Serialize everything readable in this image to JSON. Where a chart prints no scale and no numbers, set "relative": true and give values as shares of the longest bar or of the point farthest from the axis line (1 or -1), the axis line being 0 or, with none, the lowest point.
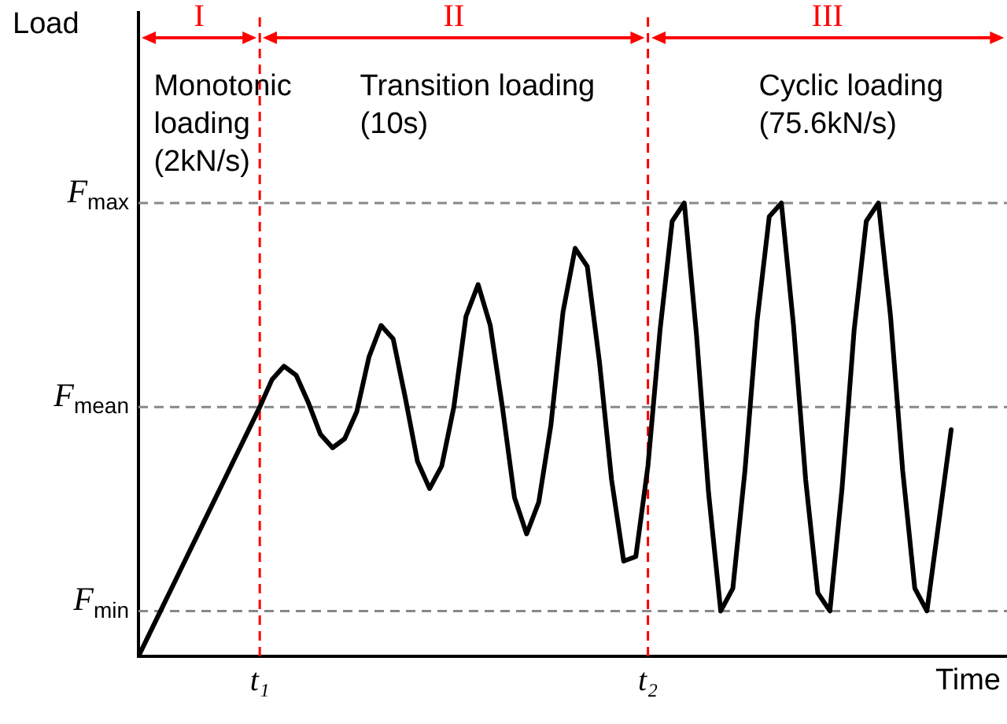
{
  "chart_data": {
    "type": "line",
    "relative": true,
    "xlabel": "Time",
    "categories": [
      null,
      null,
      null,
      null,
      null,
      null,
      null,
      null,
      null,
      null,
      "t₁",
      null,
      null,
      null,
      null,
      null,
      null,
      null,
      null,
      null,
      null,
      null,
      null,
      null,
      null,
      null,
      null,
      null,
      null,
      null,
      null,
      null,
      null,
      null,
      null,
      null,
      null,
      null,
      null,
      null,
      null,
      null,
      "t₂",
      null,
      null,
      null,
      null,
      null,
      null,
      null,
      null,
      null,
      null,
      null,
      null,
      null,
      null,
      null,
      null,
      null,
      null,
      null,
      null,
      null,
      null,
      null,
      null,
      null
    ],
    "series": [
      {
        "color": "#000000",
        "values": [
          0,
          0.055,
          0.11,
          0.165,
          0.22,
          0.275,
          0.33,
          0.385,
          0.44,
          0.495,
          0.55,
          0.61,
          0.64,
          0.62,
          0.56,
          0.49,
          0.46,
          0.48,
          0.54,
          0.66,
          0.73,
          0.7,
          0.57,
          0.43,
          0.37,
          0.42,
          0.55,
          0.75,
          0.82,
          0.73,
          0.55,
          0.35,
          0.27,
          0.34,
          0.51,
          0.76,
          0.9,
          0.86,
          0.65,
          0.39,
          0.21,
          0.22,
          0.42,
          0.72,
          0.96,
          1,
          0.71,
          0.36,
          0.1,
          0.15,
          0.41,
          0.74,
          0.97,
          1,
          0.73,
          0.39,
          0.14,
          0.1,
          0.37,
          0.72,
          0.96,
          1,
          0.75,
          0.41,
          0.15,
          0.1,
          0.3,
          0.5
        ]
      }
    ],
    "marker": "none",
    "line_style": "solid",
    "legend": false,
    "ref_lines": [
      {
        "axis": "y",
        "value": 1,
        "label": "F$_{max}$",
        "color": "#888888",
        "line_style": "dashed"
      },
      {
        "axis": "y",
        "value": 0.55,
        "label": "F$_{mean}$",
        "color": "#888888",
        "line_style": "dashed"
      },
      {
        "axis": "y",
        "value": 0.1,
        "label": "F$_{min}$",
        "color": "#888888",
        "line_style": "dashed"
      },
      {
        "axis": "x",
        "value": "t₁",
        "color": "#ff0000",
        "line_style": "dashed"
      },
      {
        "axis": "x",
        "value": "t₂",
        "color": "#ff0000",
        "line_style": "dashed"
      }
    ],
    "annotations": [
      "I",
      "II",
      "III",
      "Monotonic\nloading\n(2kN/s)",
      "Transition loading\n(10s)",
      "Cyclic loading\n(75.6kN/s)",
      "Load"
    ]
  }
}
